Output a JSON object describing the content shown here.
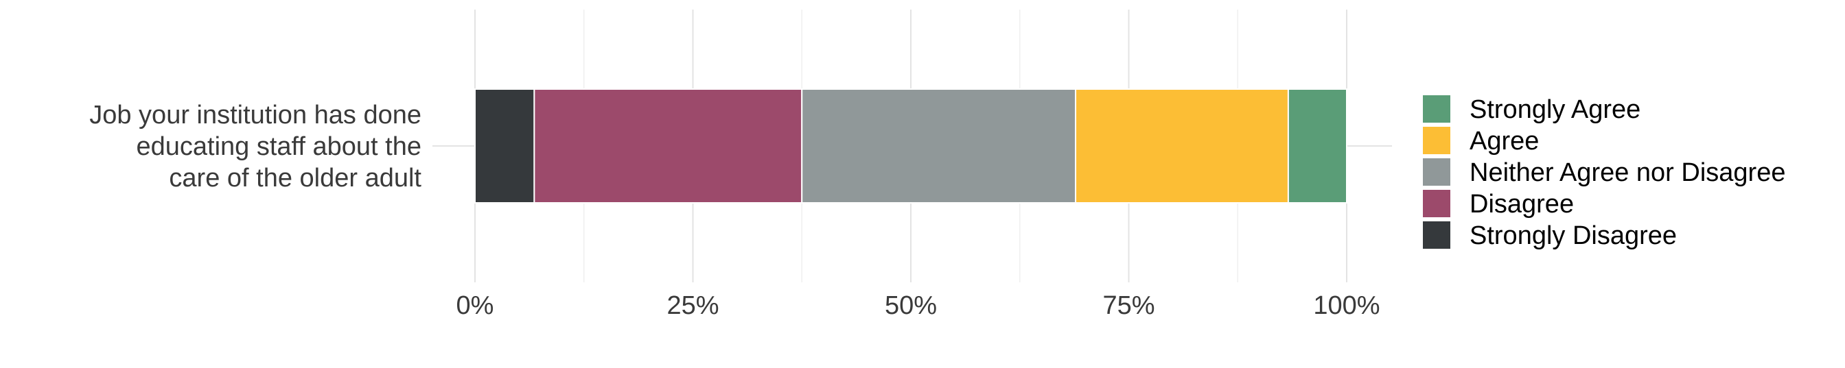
{
  "chart_data": {
    "type": "bar",
    "orientation": "horizontal",
    "stacked": true,
    "categories": [
      "Job your institution has done educating staff about the care of the older adult"
    ],
    "category_label_lines": [
      "Job your institution has done",
      "educating staff about the",
      "care of the older adult"
    ],
    "series": [
      {
        "name": "Strongly Disagree",
        "values": [
          6.8
        ],
        "color": "#35393c"
      },
      {
        "name": "Disagree",
        "values": [
          30.7
        ],
        "color": "#9c4a6b"
      },
      {
        "name": "Neither Agree nor Disagree",
        "values": [
          31.4
        ],
        "color": "#909899"
      },
      {
        "name": "Agree",
        "values": [
          24.4
        ],
        "color": "#fcbe35"
      },
      {
        "name": "Strongly Agree",
        "values": [
          6.7
        ],
        "color": "#5a9d77"
      }
    ],
    "legend_order": [
      "Strongly Agree",
      "Agree",
      "Neither Agree nor Disagree",
      "Disagree",
      "Strongly Disagree"
    ],
    "x_ticks": [
      "0%",
      "25%",
      "50%",
      "75%",
      "100%"
    ],
    "xlim": [
      0,
      100
    ],
    "grid": true,
    "legend_position": "right",
    "title": "",
    "xlabel": "",
    "ylabel": ""
  }
}
